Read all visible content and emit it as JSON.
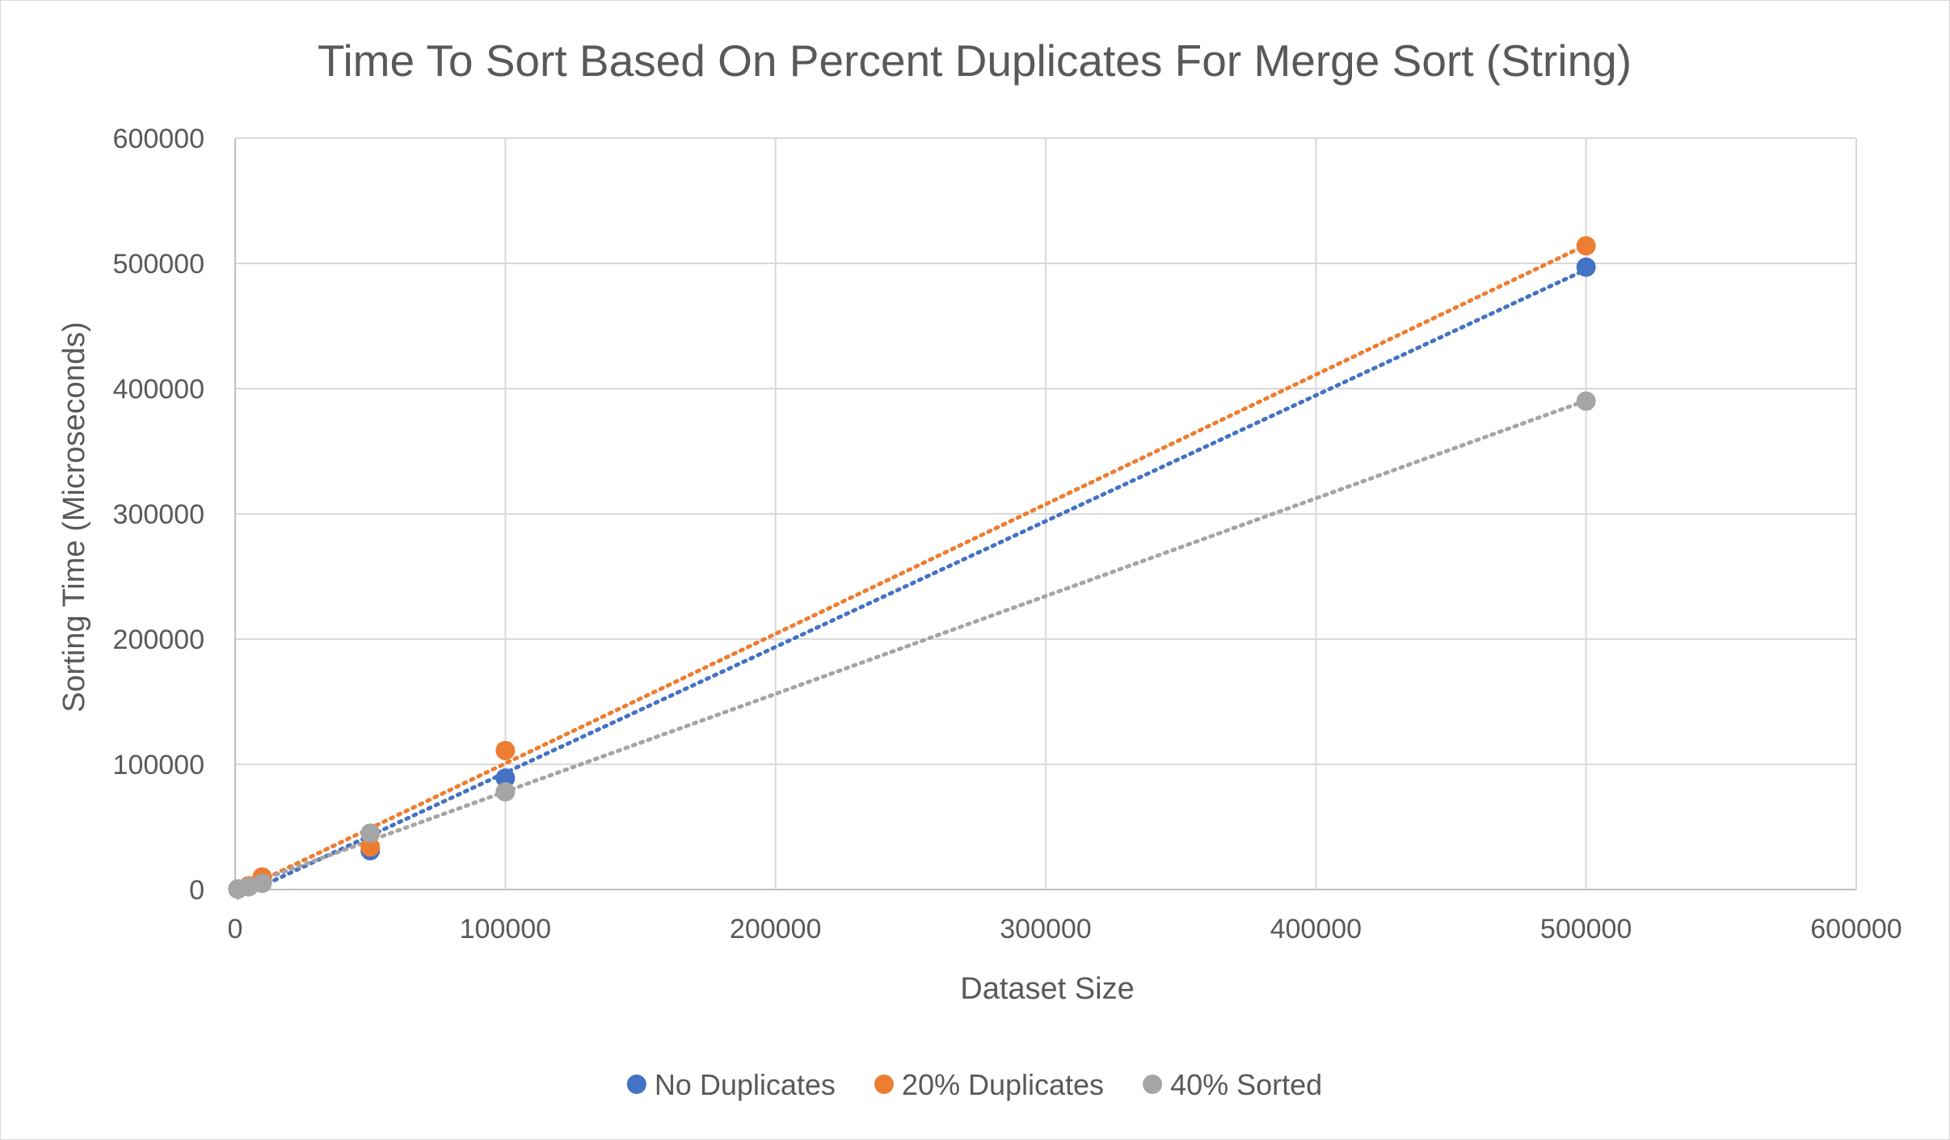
{
  "chart_data": {
    "type": "scatter",
    "title": "Time To Sort Based On Percent Duplicates For Merge Sort (String)",
    "xlabel": "Dataset Size",
    "ylabel": "Sorting Time (Microseconds)",
    "xlim": [
      0,
      600000
    ],
    "ylim": [
      0,
      600000
    ],
    "x_ticks": [
      0,
      100000,
      200000,
      300000,
      400000,
      500000,
      600000
    ],
    "y_ticks": [
      0,
      100000,
      200000,
      300000,
      400000,
      500000,
      600000
    ],
    "x_tick_labels": [
      "0",
      "100000",
      "200000",
      "300000",
      "400000",
      "500000",
      "600000"
    ],
    "y_tick_labels": [
      "0",
      "100000",
      "200000",
      "300000",
      "400000",
      "500000",
      "600000"
    ],
    "grid": true,
    "legend_position": "bottom",
    "trendline": "linear, dotted",
    "series": [
      {
        "name": "No Duplicates",
        "color": "#4472c4",
        "points": [
          [
            1000,
            400
          ],
          [
            5000,
            2500
          ],
          [
            10000,
            6000
          ],
          [
            50000,
            31000
          ],
          [
            100000,
            89000
          ],
          [
            500000,
            497000
          ]
        ]
      },
      {
        "name": "20% Duplicates",
        "color": "#ed7d31",
        "points": [
          [
            1000,
            500
          ],
          [
            5000,
            3000
          ],
          [
            10000,
            10000
          ],
          [
            50000,
            34000
          ],
          [
            100000,
            111000
          ],
          [
            500000,
            514000
          ]
        ]
      },
      {
        "name": "40% Sorted",
        "color": "#a5a5a5",
        "points": [
          [
            1000,
            400
          ],
          [
            5000,
            2200
          ],
          [
            10000,
            5000
          ],
          [
            50000,
            45000
          ],
          [
            100000,
            78000
          ],
          [
            500000,
            390000
          ]
        ]
      }
    ]
  }
}
